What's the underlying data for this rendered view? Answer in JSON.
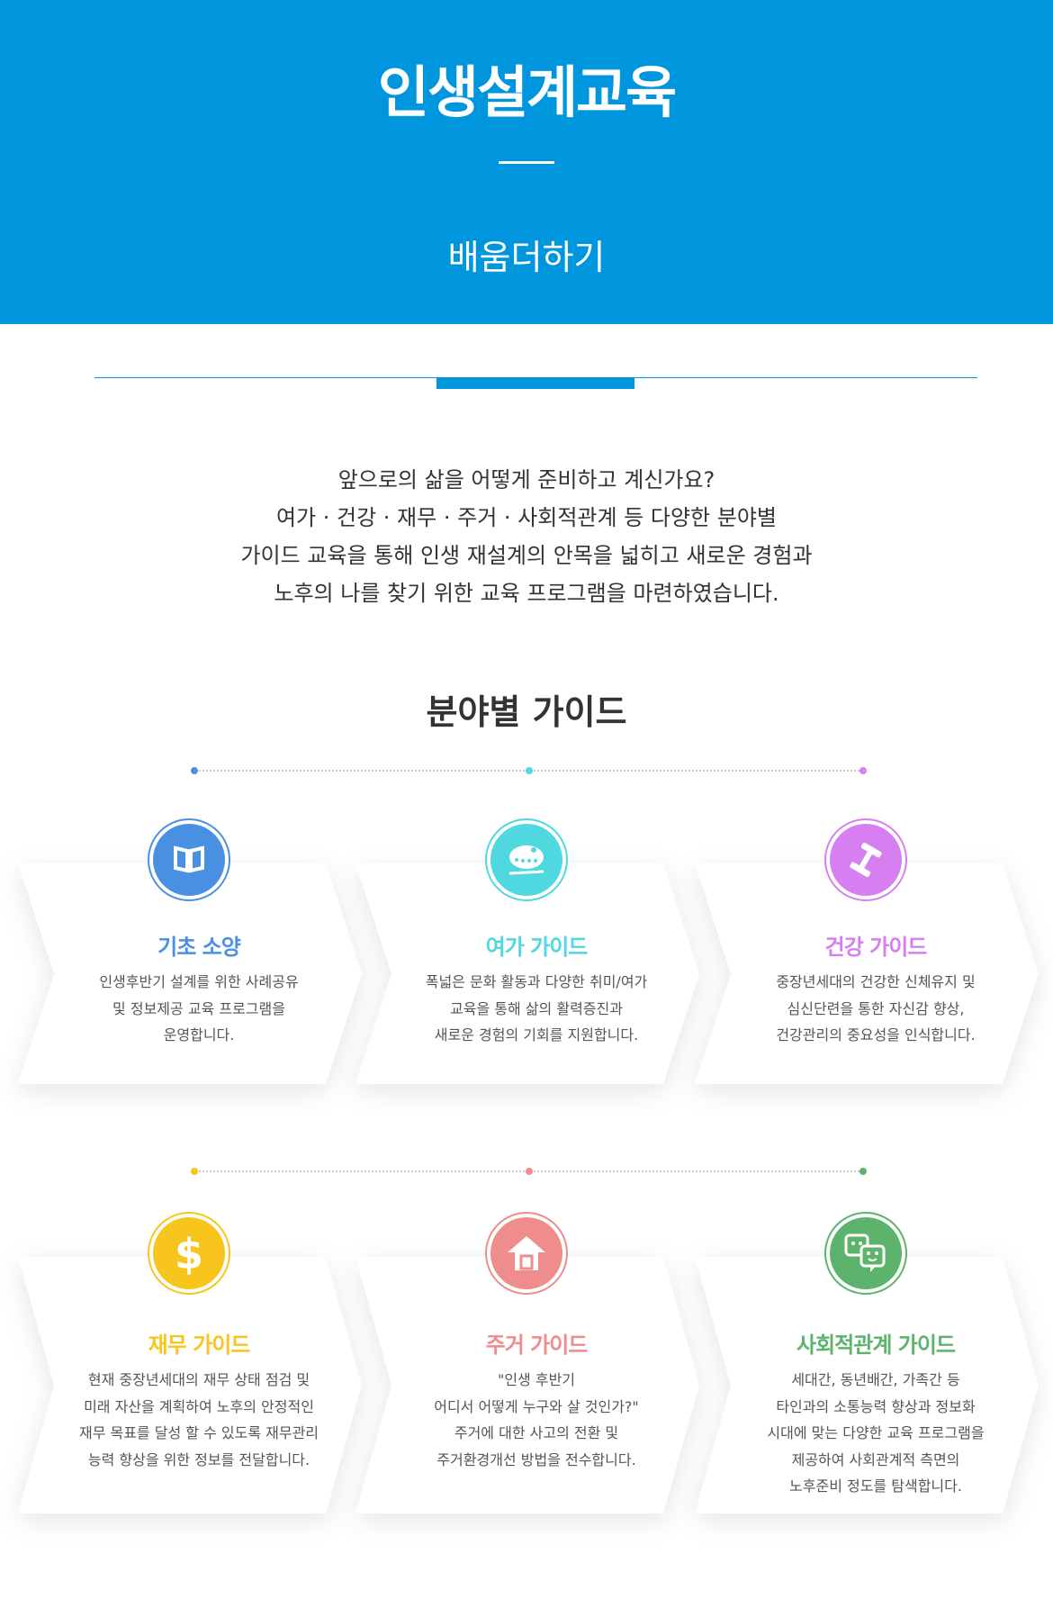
{
  "header": {
    "title": "인생설계교육",
    "subtitle": "배움더하기"
  },
  "intro": {
    "lines": [
      "앞으로의 삶을 어떻게 준비하고 계신가요?",
      "여가 · 건강 · 재무 · 주거 · 사회적관계 등 다양한 분야별",
      "가이드 교육을 통해 인생 재설계의 안목을 넓히고 새로운 경험과",
      "노후의 나를 찾기 위한 교육 프로그램을 마련하였습니다."
    ]
  },
  "section": {
    "title": "분야별 가이드"
  },
  "colors": {
    "header": "#0096de",
    "blue": "#4a90e2",
    "cyan": "#4fd8e0",
    "purple": "#d77ff0",
    "yellow": "#f8c51c",
    "pink": "#ef8c8c",
    "green": "#5cb46c"
  },
  "guides": [
    {
      "icon": "book-icon",
      "title": "기초 소양",
      "desc": "인생후반기 설계를 위한 사례공유\n및 정보제공 교육 프로그램을\n운영합니다."
    },
    {
      "icon": "palette-icon",
      "title": "여가 가이드",
      "desc": "폭넓은 문화 활동과 다양한 취미/여가\n교육을 통해 삶의 활력증진과\n새로운 경험의 기회를 지원합니다."
    },
    {
      "icon": "dumbbell-icon",
      "title": "건강 가이드",
      "desc": "중장년세대의 건강한 신체유지 및\n심신단련을 통한 자신감 향상,\n건강관리의 중요성을 인식합니다."
    },
    {
      "icon": "dollar-icon",
      "title": "재무 가이드",
      "desc": "현재 중장년세대의 재무 상태 점검 및\n미래 자산을 계획하여 노후의 안정적인\n재무 목표를 달성 할 수 있도록 재무관리\n능력 향상을 위한 정보를 전달합니다."
    },
    {
      "icon": "house-icon",
      "title": "주거 가이드",
      "desc": "\"인생 후반기\n어디서 어떻게 누구와 살 것인가?\"\n주거에 대한 사고의 전환 및\n주거환경개선 방법을 전수합니다."
    },
    {
      "icon": "chat-icon",
      "title": "사회적관계 가이드",
      "desc": "세대간, 동년배간, 가족간 등\n타인과의 소통능력 향상과 정보화\n시대에 맞는 다양한 교육 프로그램을\n제공하여 사회관계적 측면의\n노후준비 정도를 탐색합니다."
    }
  ]
}
